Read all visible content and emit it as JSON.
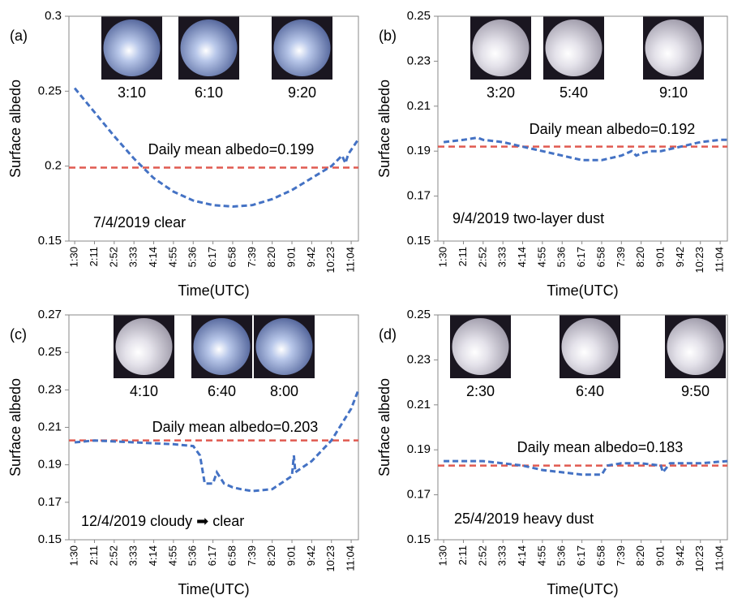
{
  "chart_data": [
    {
      "type": "line",
      "panel_label": "(a)",
      "y_label": "Surface albedo",
      "x_label": "Time(UTC)",
      "xlim": [
        "1:18",
        "11:19"
      ],
      "xticks": [
        "1:30",
        "2:11",
        "2:52",
        "3:33",
        "4:14",
        "4:55",
        "5:36",
        "6:17",
        "6:58",
        "7:39",
        "8:20",
        "9:01",
        "9:42",
        "10:23",
        "11:04"
      ],
      "ylim": [
        0.15,
        0.3
      ],
      "yticks": [
        0.15,
        0.2,
        0.25,
        0.3
      ],
      "series": [
        {
          "color": "#4472c4",
          "x": [
            "1:30",
            "2:11",
            "2:52",
            "3:33",
            "4:14",
            "4:55",
            "5:36",
            "6:17",
            "6:58",
            "7:39",
            "8:20",
            "9:01",
            "9:42",
            "10:23",
            "10:45",
            "10:52",
            "10:58",
            "11:19"
          ],
          "values": [
            0.252,
            0.236,
            0.22,
            0.205,
            0.192,
            0.183,
            0.177,
            0.174,
            0.173,
            0.174,
            0.178,
            0.184,
            0.192,
            0.2,
            0.207,
            0.202,
            0.208,
            0.218
          ]
        }
      ],
      "mean": 0.199,
      "mean_color": "#e05a50",
      "mean_label": "Daily mean albedo=0.199",
      "note": "7/4/2019 clear",
      "photo_times": [
        "3:10",
        "6:10",
        "9:20"
      ]
    },
    {
      "type": "line",
      "panel_label": "(b)",
      "y_label": "Surface albedo",
      "x_label": "Time(UTC)",
      "xlim": [
        "1:18",
        "11:19"
      ],
      "xticks": [
        "1:30",
        "2:11",
        "2:52",
        "3:33",
        "4:14",
        "4:55",
        "5:36",
        "6:17",
        "6:58",
        "7:39",
        "8:20",
        "9:01",
        "9:42",
        "10:23",
        "11:04"
      ],
      "ylim": [
        0.15,
        0.25
      ],
      "yticks": [
        0.15,
        0.17,
        0.19,
        0.21,
        0.23,
        0.25
      ],
      "series": [
        {
          "color": "#4472c4",
          "x": [
            "1:30",
            "2:11",
            "2:40",
            "2:52",
            "3:33",
            "4:14",
            "4:55",
            "5:36",
            "6:17",
            "6:58",
            "7:39",
            "8:00",
            "8:10",
            "8:20",
            "8:40",
            "9:01",
            "9:42",
            "10:23",
            "11:04",
            "11:19"
          ],
          "values": [
            0.194,
            0.195,
            0.196,
            0.195,
            0.194,
            0.192,
            0.19,
            0.188,
            0.186,
            0.186,
            0.188,
            0.19,
            0.188,
            0.189,
            0.19,
            0.19,
            0.192,
            0.194,
            0.195,
            0.195
          ]
        }
      ],
      "mean": 0.192,
      "mean_color": "#e05a50",
      "mean_label": "Daily mean albedo=0.192",
      "note": "9/4/2019  two-layer dust",
      "photo_times": [
        "3:20",
        "5:40",
        "9:10"
      ]
    },
    {
      "type": "line",
      "panel_label": "(c)",
      "y_label": "Surface albedo",
      "x_label": "Time(UTC)",
      "xlim": [
        "1:18",
        "11:19"
      ],
      "xticks": [
        "1:30",
        "2:11",
        "2:52",
        "3:33",
        "4:14",
        "4:55",
        "5:36",
        "6:17",
        "6:58",
        "7:39",
        "8:20",
        "9:01",
        "9:42",
        "10:23",
        "11:04"
      ],
      "ylim": [
        0.15,
        0.27
      ],
      "yticks": [
        0.15,
        0.17,
        0.19,
        0.21,
        0.23,
        0.25,
        0.27
      ],
      "series": [
        {
          "color": "#4472c4",
          "x": [
            "1:30",
            "2:11",
            "3:33",
            "4:55",
            "5:36",
            "5:50",
            "6:00",
            "6:17",
            "6:25",
            "6:40",
            "6:58",
            "7:15",
            "7:39",
            "8:20",
            "9:01",
            "9:05",
            "9:08",
            "9:42",
            "10:23",
            "11:04",
            "11:19"
          ],
          "values": [
            0.202,
            0.203,
            0.202,
            0.201,
            0.2,
            0.195,
            0.18,
            0.18,
            0.186,
            0.18,
            0.178,
            0.177,
            0.176,
            0.177,
            0.184,
            0.195,
            0.186,
            0.192,
            0.203,
            0.22,
            0.23
          ]
        }
      ],
      "mean": 0.203,
      "mean_color": "#e05a50",
      "mean_label": "Daily mean albedo=0.203",
      "note": "12/4/2019 cloudy ➡ clear",
      "photo_times": [
        "4:10",
        "6:40",
        "8:00"
      ]
    },
    {
      "type": "line",
      "panel_label": "(d)",
      "y_label": "Surface albedo",
      "x_label": "Time(UTC)",
      "xlim": [
        "1:18",
        "11:19"
      ],
      "xticks": [
        "1:30",
        "2:11",
        "2:52",
        "3:33",
        "4:14",
        "4:55",
        "5:36",
        "6:17",
        "6:58",
        "7:39",
        "8:20",
        "9:01",
        "9:42",
        "10:23",
        "11:04"
      ],
      "ylim": [
        0.15,
        0.25
      ],
      "yticks": [
        0.15,
        0.17,
        0.19,
        0.21,
        0.23,
        0.25
      ],
      "series": [
        {
          "color": "#4472c4",
          "x": [
            "1:30",
            "2:52",
            "4:14",
            "4:55",
            "5:36",
            "6:17",
            "6:58",
            "7:10",
            "7:39",
            "8:20",
            "9:01",
            "9:05",
            "9:20",
            "10:23",
            "11:19"
          ],
          "values": [
            0.185,
            0.185,
            0.183,
            0.181,
            0.18,
            0.179,
            0.179,
            0.183,
            0.184,
            0.184,
            0.183,
            0.18,
            0.184,
            0.184,
            0.185
          ]
        }
      ],
      "mean": 0.183,
      "mean_color": "#e05a50",
      "mean_label": "Daily mean albedo=0.183",
      "note": "25/4/2019  heavy dust",
      "photo_times": [
        "2:30",
        "6:40",
        "9:50"
      ]
    }
  ]
}
